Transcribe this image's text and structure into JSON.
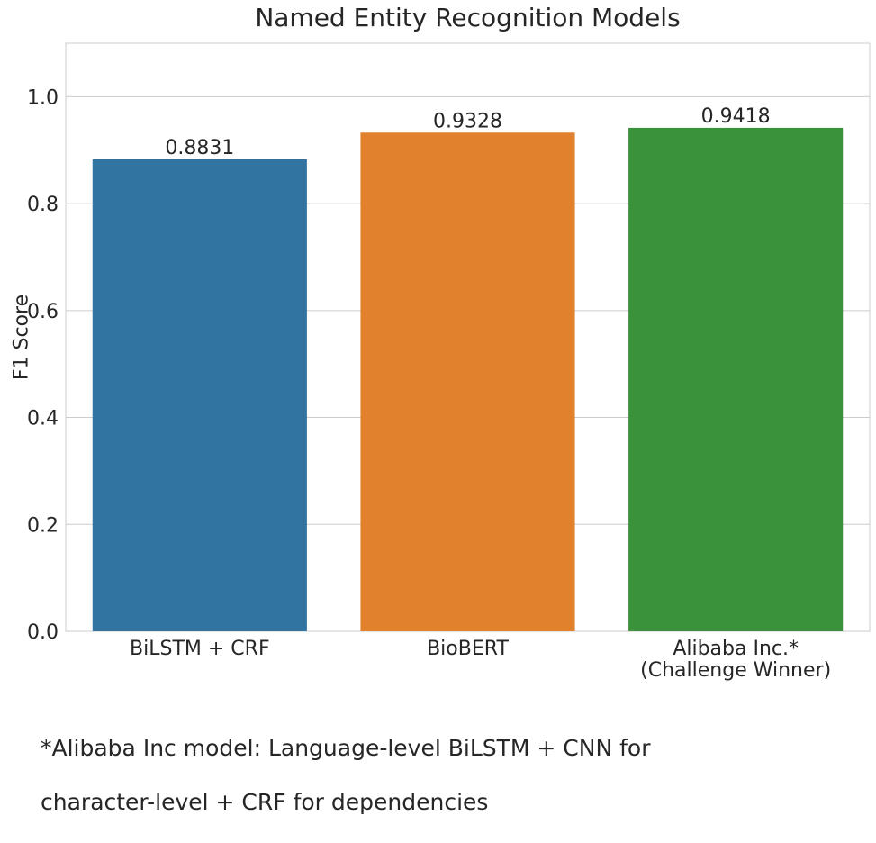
{
  "chart_data": {
    "type": "bar",
    "title": "Named Entity Recognition Models",
    "xlabel": "",
    "ylabel": "F1 Score",
    "ylim": [
      0,
      1.1
    ],
    "yticks": [
      "0.0",
      "0.2",
      "0.4",
      "0.6",
      "0.8",
      "1.0"
    ],
    "grid": true,
    "categories": [
      [
        "BiLSTM + CRF"
      ],
      [
        "BioBERT"
      ],
      [
        "Alibaba Inc.*",
        "(Challenge Winner)"
      ]
    ],
    "values": [
      0.8831,
      0.9328,
      0.9418
    ],
    "data_labels": [
      "0.8831",
      "0.9328",
      "0.9418"
    ],
    "colors": [
      "#3274a1",
      "#e1812c",
      "#3a923a"
    ]
  },
  "footnote": {
    "lines": [
      "*Alibaba Inc model: Language-level BiLSTM + CNN for",
      "character-level + CRF for  dependencies"
    ]
  }
}
